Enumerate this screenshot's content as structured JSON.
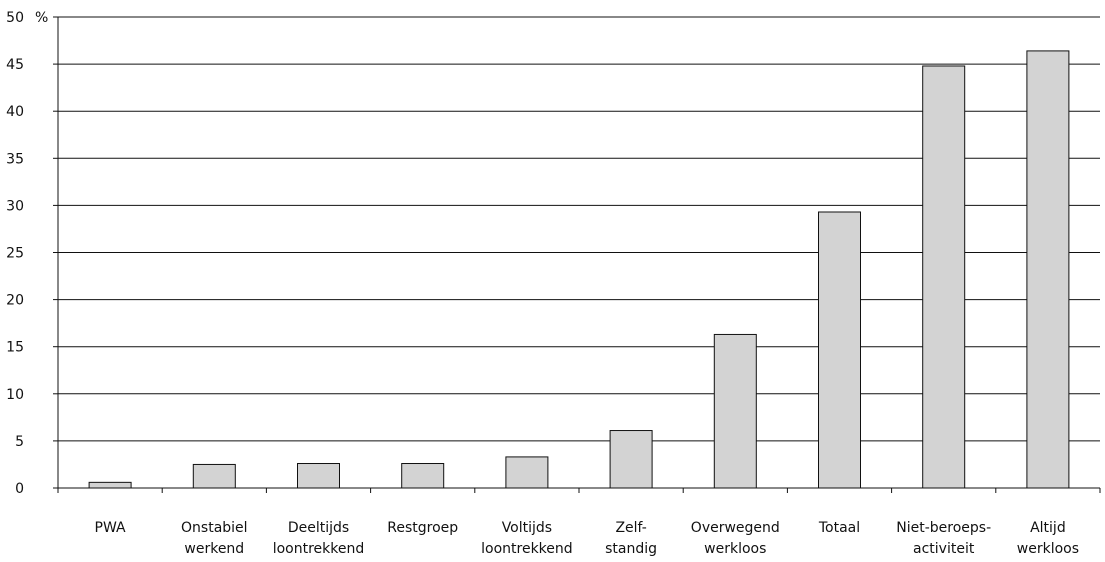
{
  "chart_data": {
    "type": "bar",
    "title": "",
    "xlabel": "",
    "ylabel": "",
    "y_unit": "%",
    "ylim": [
      0,
      50
    ],
    "yticks": [
      0,
      5,
      10,
      15,
      20,
      25,
      30,
      35,
      40,
      45,
      50
    ],
    "grid": true,
    "legend": "none",
    "categories": [
      [
        "PWA"
      ],
      [
        "Onstabiel",
        "werkend"
      ],
      [
        "Deeltijds",
        "loontrekkend"
      ],
      [
        "Restgroep"
      ],
      [
        "Voltijds",
        "loontrekkend"
      ],
      [
        "Zelf-",
        "standig"
      ],
      [
        "Overwegend",
        "werkloos"
      ],
      [
        "Totaal"
      ],
      [
        "Niet-beroeps-",
        "activiteit"
      ],
      [
        "Altijd",
        "werkloos"
      ]
    ],
    "values": [
      0.6,
      2.5,
      2.6,
      2.6,
      3.3,
      6.1,
      16.3,
      29.3,
      44.8,
      46.4
    ],
    "colors": {
      "bar_fill": "#d3d3d3",
      "bar_stroke": "#111111",
      "axis": "#111111",
      "grid": "#111111"
    }
  }
}
